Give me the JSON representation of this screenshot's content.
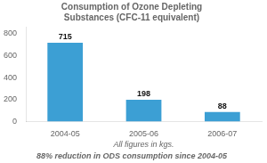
{
  "chart_data": {
    "type": "bar",
    "title": "Consumption of Ozone Depleting\nSubstances (CFC-11 equivalent)",
    "xlabel": "All figures in kgs.",
    "annotations": [
      "88% reduction in ODS consumption since 2004-05"
    ],
    "categories": [
      "2004-05",
      "2005-06",
      "2006-07"
    ],
    "values": [
      715,
      198,
      88
    ],
    "color": "#3c9fd4",
    "ylim": [
      0,
      860
    ],
    "yticks": [
      0,
      200,
      400,
      600,
      800
    ],
    "grid": false,
    "data_labels": true
  }
}
